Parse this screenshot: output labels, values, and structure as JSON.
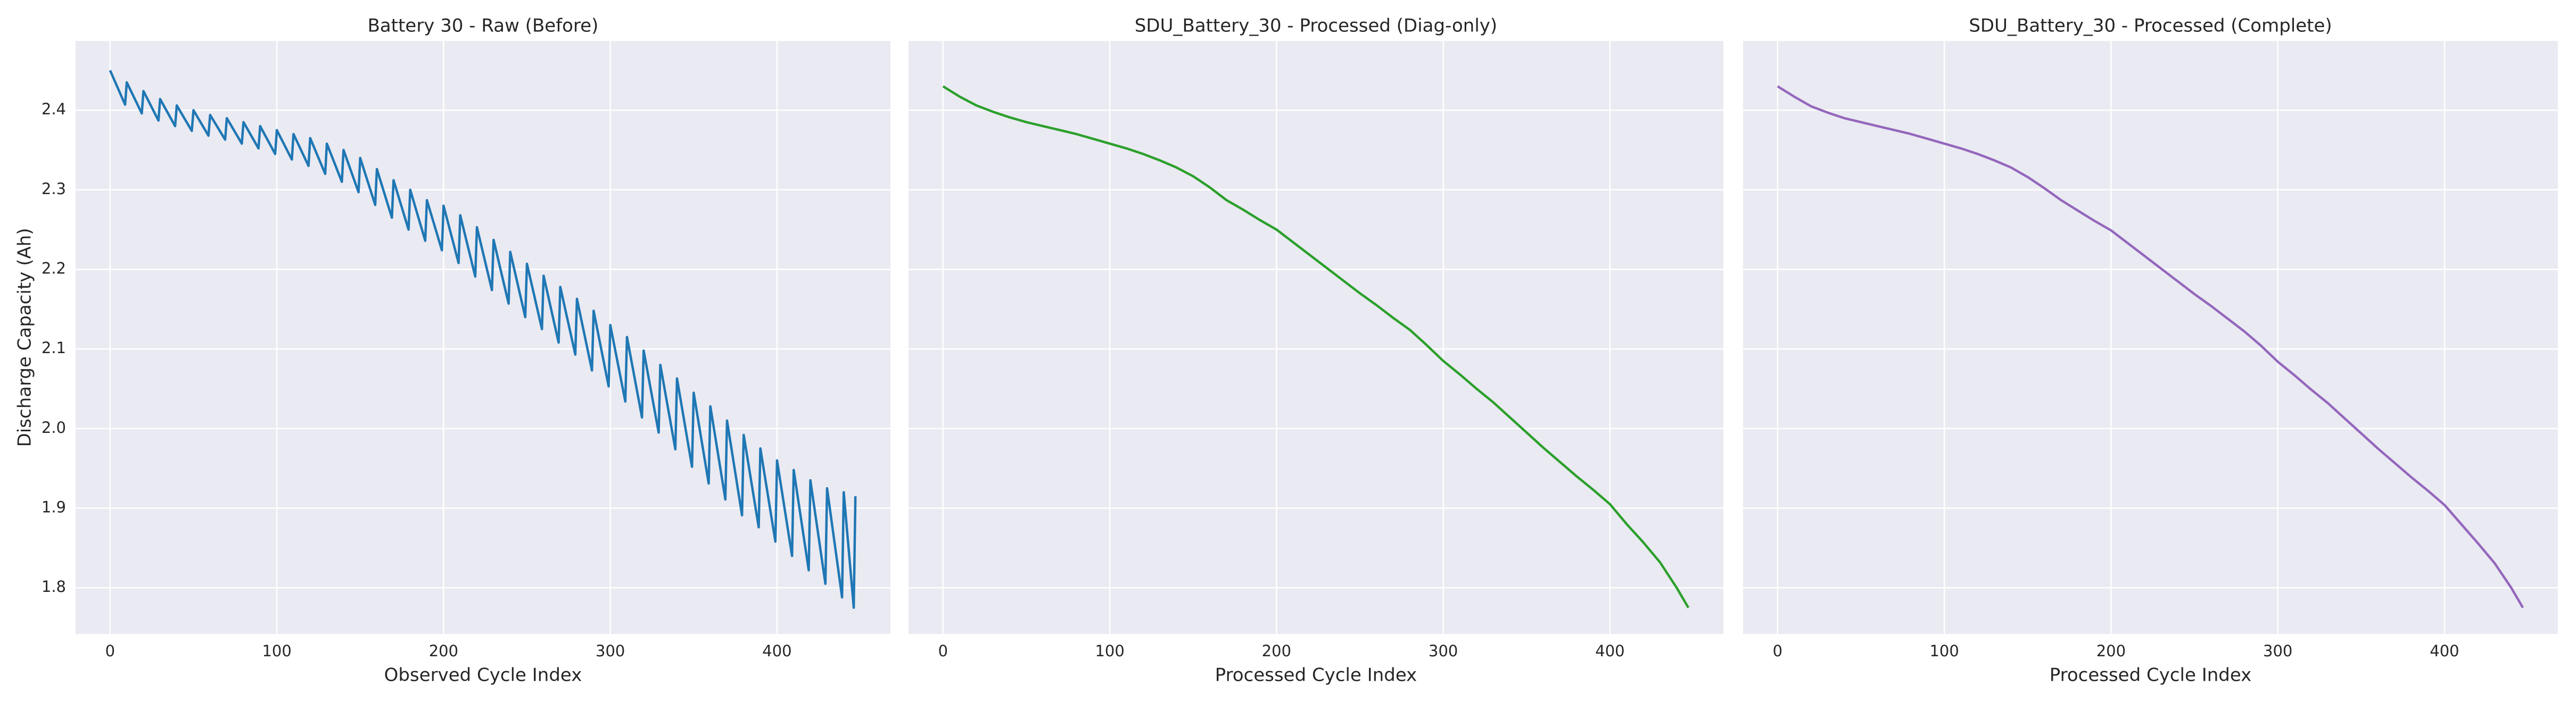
{
  "chart_data": [
    {
      "type": "line",
      "title": "Battery 30 - Raw (Before)",
      "xlabel": "Observed Cycle Index",
      "ylabel": "Discharge Capacity (Ah)",
      "x": [
        0,
        9,
        10,
        19,
        20,
        29,
        30,
        39,
        40,
        49,
        50,
        59,
        60,
        69,
        70,
        79,
        80,
        89,
        90,
        99,
        100,
        109,
        110,
        119,
        120,
        129,
        130,
        139,
        140,
        149,
        150,
        159,
        160,
        169,
        170,
        179,
        180,
        189,
        190,
        199,
        200,
        209,
        210,
        219,
        220,
        229,
        230,
        239,
        240,
        249,
        250,
        259,
        260,
        269,
        270,
        279,
        280,
        289,
        290,
        299,
        300,
        309,
        310,
        319,
        320,
        329,
        330,
        339,
        340,
        349,
        350,
        359,
        360,
        369,
        370,
        379,
        380,
        389,
        390,
        399,
        400,
        409,
        410,
        419,
        420,
        429,
        430,
        439,
        440,
        446,
        447
      ],
      "series": [
        {
          "name": "Battery 30",
          "color": "#1f77b4",
          "values": [
            2.45,
            2.407,
            2.435,
            2.396,
            2.424,
            2.387,
            2.414,
            2.38,
            2.406,
            2.374,
            2.4,
            2.368,
            2.394,
            2.363,
            2.39,
            2.358,
            2.385,
            2.352,
            2.38,
            2.345,
            2.375,
            2.338,
            2.37,
            2.33,
            2.365,
            2.32,
            2.358,
            2.31,
            2.35,
            2.297,
            2.34,
            2.281,
            2.326,
            2.265,
            2.312,
            2.25,
            2.3,
            2.236,
            2.287,
            2.224,
            2.28,
            2.208,
            2.268,
            2.191,
            2.253,
            2.174,
            2.237,
            2.157,
            2.222,
            2.14,
            2.207,
            2.125,
            2.192,
            2.108,
            2.178,
            2.093,
            2.163,
            2.073,
            2.148,
            2.053,
            2.13,
            2.034,
            2.115,
            2.014,
            2.098,
            1.995,
            2.08,
            1.974,
            2.063,
            1.952,
            2.045,
            1.931,
            2.028,
            1.911,
            2.01,
            1.891,
            1.992,
            1.876,
            1.975,
            1.858,
            1.96,
            1.84,
            1.948,
            1.822,
            1.935,
            1.805,
            1.925,
            1.788,
            1.92,
            1.775,
            1.915
          ]
        }
      ],
      "xlim": [
        -20.7,
        468
      ],
      "xticks": [
        0,
        100,
        200,
        300,
        400
      ],
      "ylim": [
        1.742,
        2.487
      ],
      "yticks": [
        {
          "value": 1.8,
          "label": "1.8"
        },
        {
          "value": 1.9,
          "label": "1.9"
        },
        {
          "value": 2.0,
          "label": "2.0"
        },
        {
          "value": 2.1,
          "label": "2.1"
        },
        {
          "value": 2.2,
          "label": "2.2"
        },
        {
          "value": 2.3,
          "label": "2.3"
        },
        {
          "value": 2.4,
          "label": "2.4"
        }
      ],
      "grid": true
    },
    {
      "type": "line",
      "title": "SDU_Battery_30 - Processed (Diag-only)",
      "xlabel": "Processed Cycle Index",
      "x": [
        0,
        10,
        20,
        30,
        40,
        50,
        60,
        70,
        80,
        90,
        100,
        110,
        120,
        130,
        140,
        150,
        160,
        170,
        180,
        190,
        200,
        210,
        220,
        230,
        240,
        250,
        260,
        270,
        280,
        290,
        300,
        310,
        320,
        330,
        340,
        350,
        360,
        370,
        380,
        390,
        400,
        410,
        420,
        430,
        440,
        447
      ],
      "series": [
        {
          "name": "SDU_Battery_30",
          "color": "#2ca02c",
          "values": [
            2.43,
            2.417,
            2.406,
            2.398,
            2.391,
            2.385,
            2.38,
            2.375,
            2.37,
            2.364,
            2.358,
            2.352,
            2.345,
            2.337,
            2.328,
            2.317,
            2.303,
            2.287,
            2.275,
            2.262,
            2.25,
            2.234,
            2.218,
            2.202,
            2.186,
            2.17,
            2.155,
            2.139,
            2.124,
            2.105,
            2.085,
            2.068,
            2.05,
            2.033,
            2.014,
            1.995,
            1.976,
            1.958,
            1.94,
            1.923,
            1.905,
            1.88,
            1.857,
            1.832,
            1.8,
            1.775
          ]
        }
      ],
      "xlim": [
        -20.7,
        468
      ],
      "xticks": [
        0,
        100,
        200,
        300,
        400
      ],
      "grid": true
    },
    {
      "type": "line",
      "title": "SDU_Battery_30 - Processed (Complete)",
      "xlabel": "Processed Cycle Index",
      "x": [
        0,
        10,
        20,
        30,
        40,
        50,
        60,
        70,
        80,
        90,
        100,
        110,
        120,
        130,
        140,
        150,
        160,
        170,
        180,
        190,
        200,
        210,
        220,
        230,
        240,
        250,
        260,
        270,
        280,
        290,
        300,
        310,
        320,
        330,
        340,
        350,
        360,
        370,
        380,
        390,
        400,
        410,
        420,
        430,
        440,
        447
      ],
      "series": [
        {
          "name": "SDU_Battery_30",
          "color": "#9467bd",
          "values": [
            2.43,
            2.417,
            2.405,
            2.397,
            2.39,
            2.385,
            2.38,
            2.375,
            2.37,
            2.364,
            2.358,
            2.352,
            2.345,
            2.337,
            2.328,
            2.316,
            2.302,
            2.287,
            2.274,
            2.261,
            2.249,
            2.233,
            2.217,
            2.201,
            2.185,
            2.169,
            2.154,
            2.138,
            2.122,
            2.104,
            2.084,
            2.067,
            2.049,
            2.032,
            2.013,
            1.994,
            1.975,
            1.957,
            1.939,
            1.922,
            1.904,
            1.88,
            1.856,
            1.831,
            1.8,
            1.775
          ]
        }
      ],
      "xlim": [
        -20.7,
        468
      ],
      "xticks": [
        0,
        100,
        200,
        300,
        400
      ],
      "grid": true
    }
  ]
}
